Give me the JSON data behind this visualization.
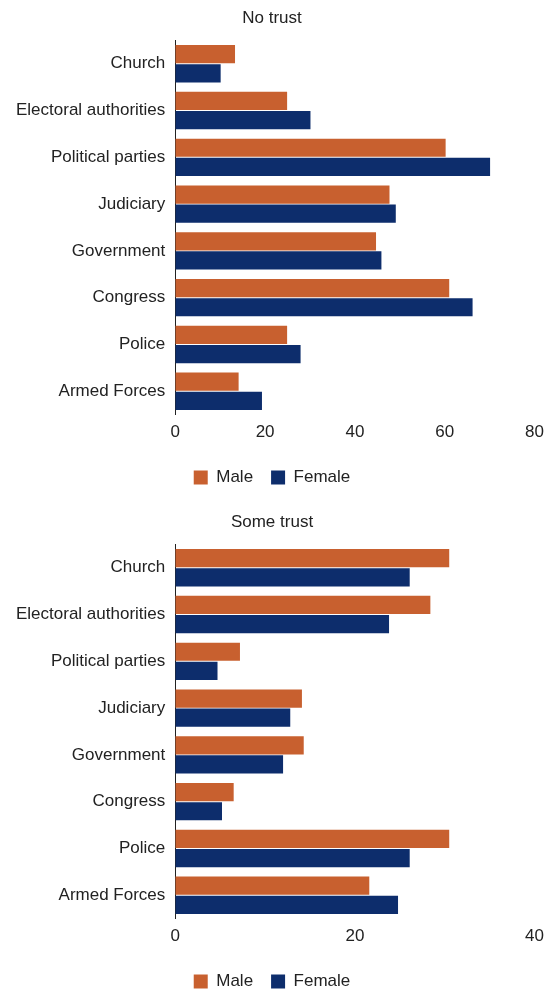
{
  "chart_data": [
    {
      "type": "bar",
      "orientation": "horizontal",
      "title": "No trust",
      "categories": [
        "Church",
        "Electoral authorities",
        "Political parties",
        "Judiciary",
        "Government",
        "Congress",
        "Police",
        "Armed Forces"
      ],
      "series": [
        {
          "name": "Male",
          "color": "#c8602f",
          "values": [
            13.3,
            24.9,
            60.2,
            47.7,
            44.7,
            61,
            24.9,
            14.1
          ]
        },
        {
          "name": "Female",
          "color": "#0d2d6c",
          "values": [
            10.1,
            30.1,
            70.1,
            49.1,
            45.9,
            66.2,
            27.9,
            19.3
          ]
        }
      ],
      "xlim": [
        0,
        80
      ],
      "xticks": [
        0,
        20,
        40,
        60,
        80
      ],
      "grid": false,
      "legend": "bottom"
    },
    {
      "type": "bar",
      "orientation": "horizontal",
      "title": "Some trust",
      "categories": [
        "Church",
        "Electoral authorities",
        "Political parties",
        "Judiciary",
        "Government",
        "Congress",
        "Police",
        "Armed Forces"
      ],
      "series": [
        {
          "name": "Male",
          "color": "#c8602f",
          "values": [
            30.5,
            28.4,
            7.2,
            14.1,
            14.3,
            6.5,
            30.5,
            21.6
          ]
        },
        {
          "name": "Female",
          "color": "#0d2d6c",
          "values": [
            26.1,
            23.8,
            4.7,
            12.8,
            12.0,
            5.2,
            26.1,
            24.8
          ]
        }
      ],
      "xlim": [
        0,
        40
      ],
      "xticks": [
        0,
        20,
        40
      ],
      "grid": false,
      "legend": "bottom"
    }
  ]
}
